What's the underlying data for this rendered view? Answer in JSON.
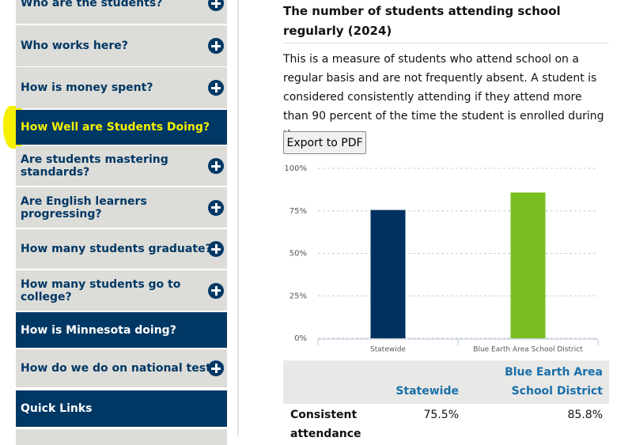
{
  "sidebar": {
    "items": [
      {
        "label": "Who are the students?"
      },
      {
        "label": "Who works here?"
      },
      {
        "label": "How is money spent?"
      },
      {
        "label": "How Well are Students Doing?"
      },
      {
        "label": "Are students mastering standards?"
      },
      {
        "label": "Are English learners progressing?"
      },
      {
        "label": "How many students graduate?"
      },
      {
        "label": "How many students go to college?"
      },
      {
        "label": "How is Minnesota doing?"
      },
      {
        "label": "How do we do on national tests?"
      },
      {
        "label": "Quick Links"
      }
    ]
  },
  "content": {
    "heading": "The number of students attending school regularly (2024)",
    "description": "This is a measure of students who attend school on a regular basis and are not frequently absent. A student is considered consistently attending if they attend more than 90 percent of the time the student is enrolled during the year.",
    "export_button": "Export to PDF"
  },
  "chart_data": {
    "type": "bar",
    "categories": [
      "Statewide",
      "Blue Earth Area School District"
    ],
    "values": [
      75.5,
      85.8
    ],
    "colors": [
      "#00325f",
      "#78be21"
    ],
    "ylim": [
      0,
      100
    ],
    "yticks": [
      {
        "value": 0,
        "label": "0%"
      },
      {
        "value": 25,
        "label": "25%"
      },
      {
        "value": 50,
        "label": "50%"
      },
      {
        "value": 75,
        "label": "75%"
      },
      {
        "value": 100,
        "label": "100%"
      }
    ],
    "grid": true
  },
  "table": {
    "headers": [
      "Statewide",
      "Blue Earth Area School District"
    ],
    "rows": [
      {
        "label": "Consistent attendance",
        "cells": [
          "75.5%",
          "85.8%"
        ]
      }
    ]
  }
}
